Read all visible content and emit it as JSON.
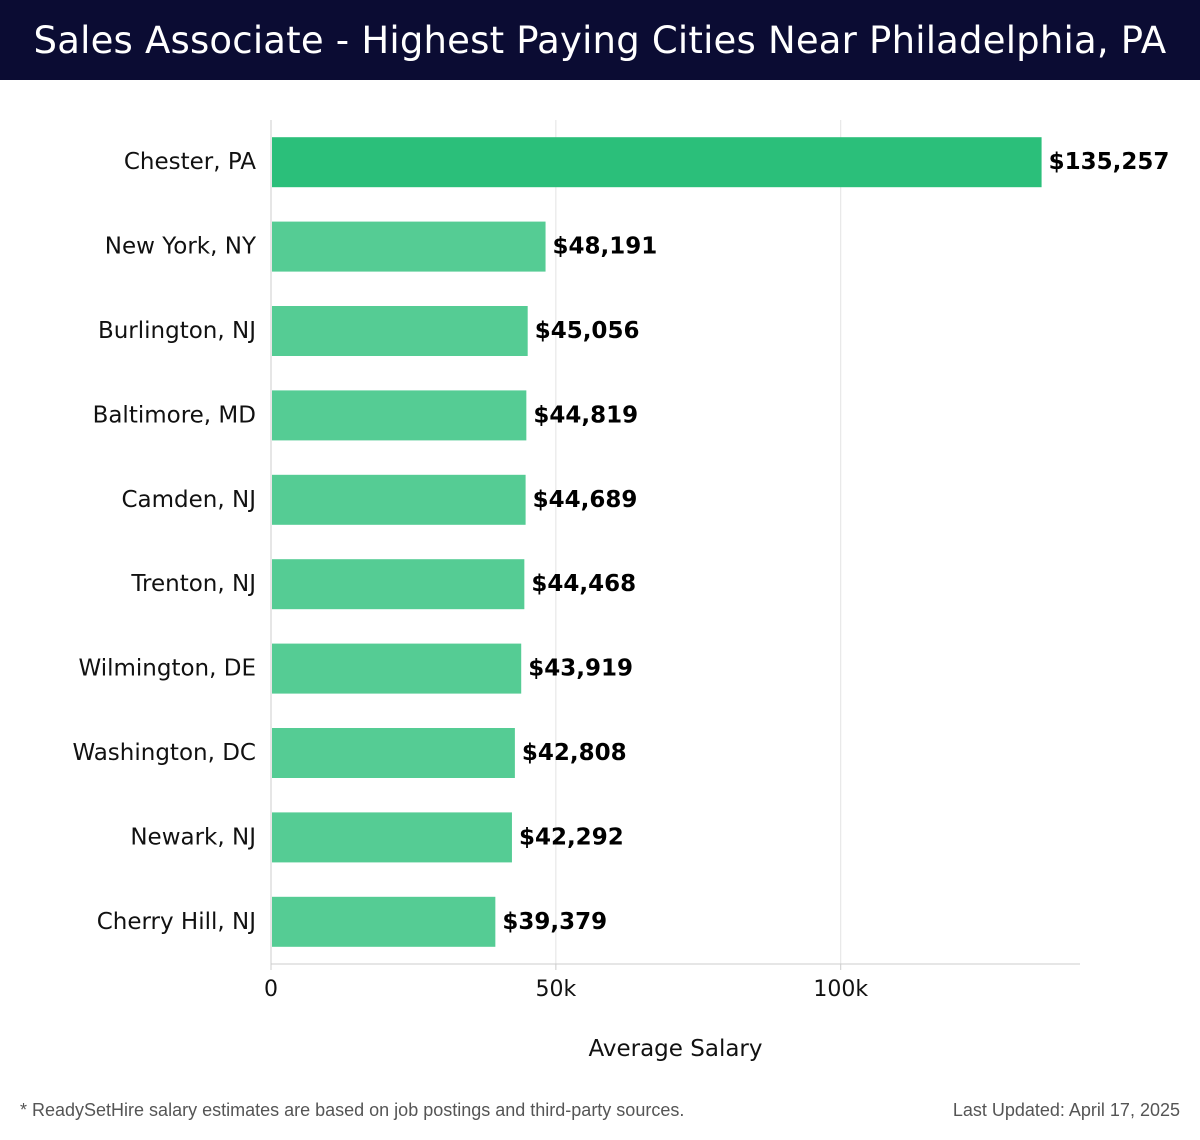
{
  "header": {
    "title": "Sales Associate - Highest Paying Cities Near Philadelphia, PA"
  },
  "footer": {
    "note": "* ReadySetHire salary estimates are based on job postings and third-party sources.",
    "updated": "Last Updated: April 17, 2025"
  },
  "chart_data": {
    "type": "bar",
    "orientation": "horizontal",
    "title": "Sales Associate - Highest Paying Cities Near Philadelphia, PA",
    "xlabel": "Average Salary",
    "ylabel": "",
    "categories": [
      "Chester, PA",
      "New York, NY",
      "Burlington, NJ",
      "Baltimore, MD",
      "Camden, NJ",
      "Trenton, NJ",
      "Wilmington, DE",
      "Washington, DC",
      "Newark, NJ",
      "Cherry Hill, NJ"
    ],
    "values": [
      135257,
      48191,
      45056,
      44819,
      44689,
      44468,
      43919,
      42808,
      42292,
      39379
    ],
    "value_labels": [
      "$135,257",
      "$48,191",
      "$45,056",
      "$44,819",
      "$44,689",
      "$44,468",
      "$43,919",
      "$42,808",
      "$42,292",
      "$39,379"
    ],
    "x_ticks": [
      0,
      50000,
      100000
    ],
    "x_tick_labels": [
      "0",
      "50k",
      "100k"
    ],
    "xlim": [
      0,
      142000
    ],
    "grid": true,
    "colors": {
      "highlight": "#2bbf7a",
      "bar": "#55cc94",
      "grid": "#e3e3e3",
      "axis": "#cccccc"
    }
  }
}
